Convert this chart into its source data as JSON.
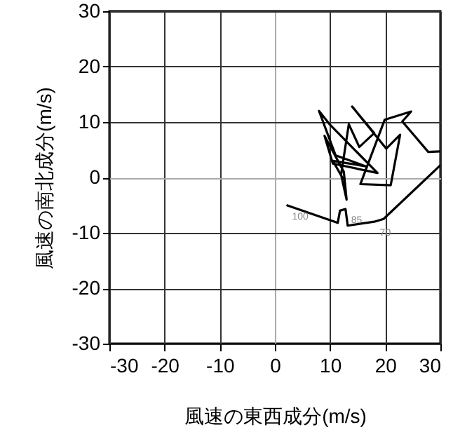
{
  "chart_data": {
    "type": "line",
    "xlabel": "風速の東西成分(m/s)",
    "ylabel": "風速の南北成分(m/s)",
    "xlim": [
      -30,
      30
    ],
    "ylim": [
      -30,
      30
    ],
    "xticks": [
      -30,
      -20,
      -10,
      0,
      10,
      20,
      30
    ],
    "yticks": [
      -30,
      -20,
      -10,
      0,
      10,
      20,
      30
    ],
    "grid": true,
    "x": [
      2.1,
      11.4,
      11.8,
      12.8,
      13.2,
      18,
      19.7,
      30,
      null,
      30,
      27.8,
      23.1,
      24.7,
      19.9,
      15.5,
      21,
      22.7,
      20.2,
      14,
      18,
      15.3,
      13.4,
      12,
      13,
      12.5,
      9,
      10.5,
      18.6,
      10,
      8,
      11,
      16.5,
      10.5,
      12.5
    ],
    "series": [
      {
        "color": "#000000",
        "values": [
          -5.0,
          -8.2,
          -6.0,
          -5.7,
          -8.7,
          -8.0,
          -7.5,
          2.2,
          null,
          4.7,
          4.6,
          10.1,
          11.9,
          10.4,
          -1.2,
          -1.4,
          7.7,
          5.2,
          12.8,
          8,
          5.5,
          9.6,
          0.5,
          -4,
          1,
          7.5,
          2.5,
          0.8,
          9.5,
          12,
          4,
          2,
          3,
          -0.5
        ]
      }
    ],
    "annotations": [
      {
        "text": "100",
        "x": 2.1,
        "y": -5.0
      },
      {
        "text": "85",
        "x": 12.8,
        "y": -5.7
      },
      {
        "text": "70",
        "x": 18,
        "y": -8.0
      }
    ]
  }
}
